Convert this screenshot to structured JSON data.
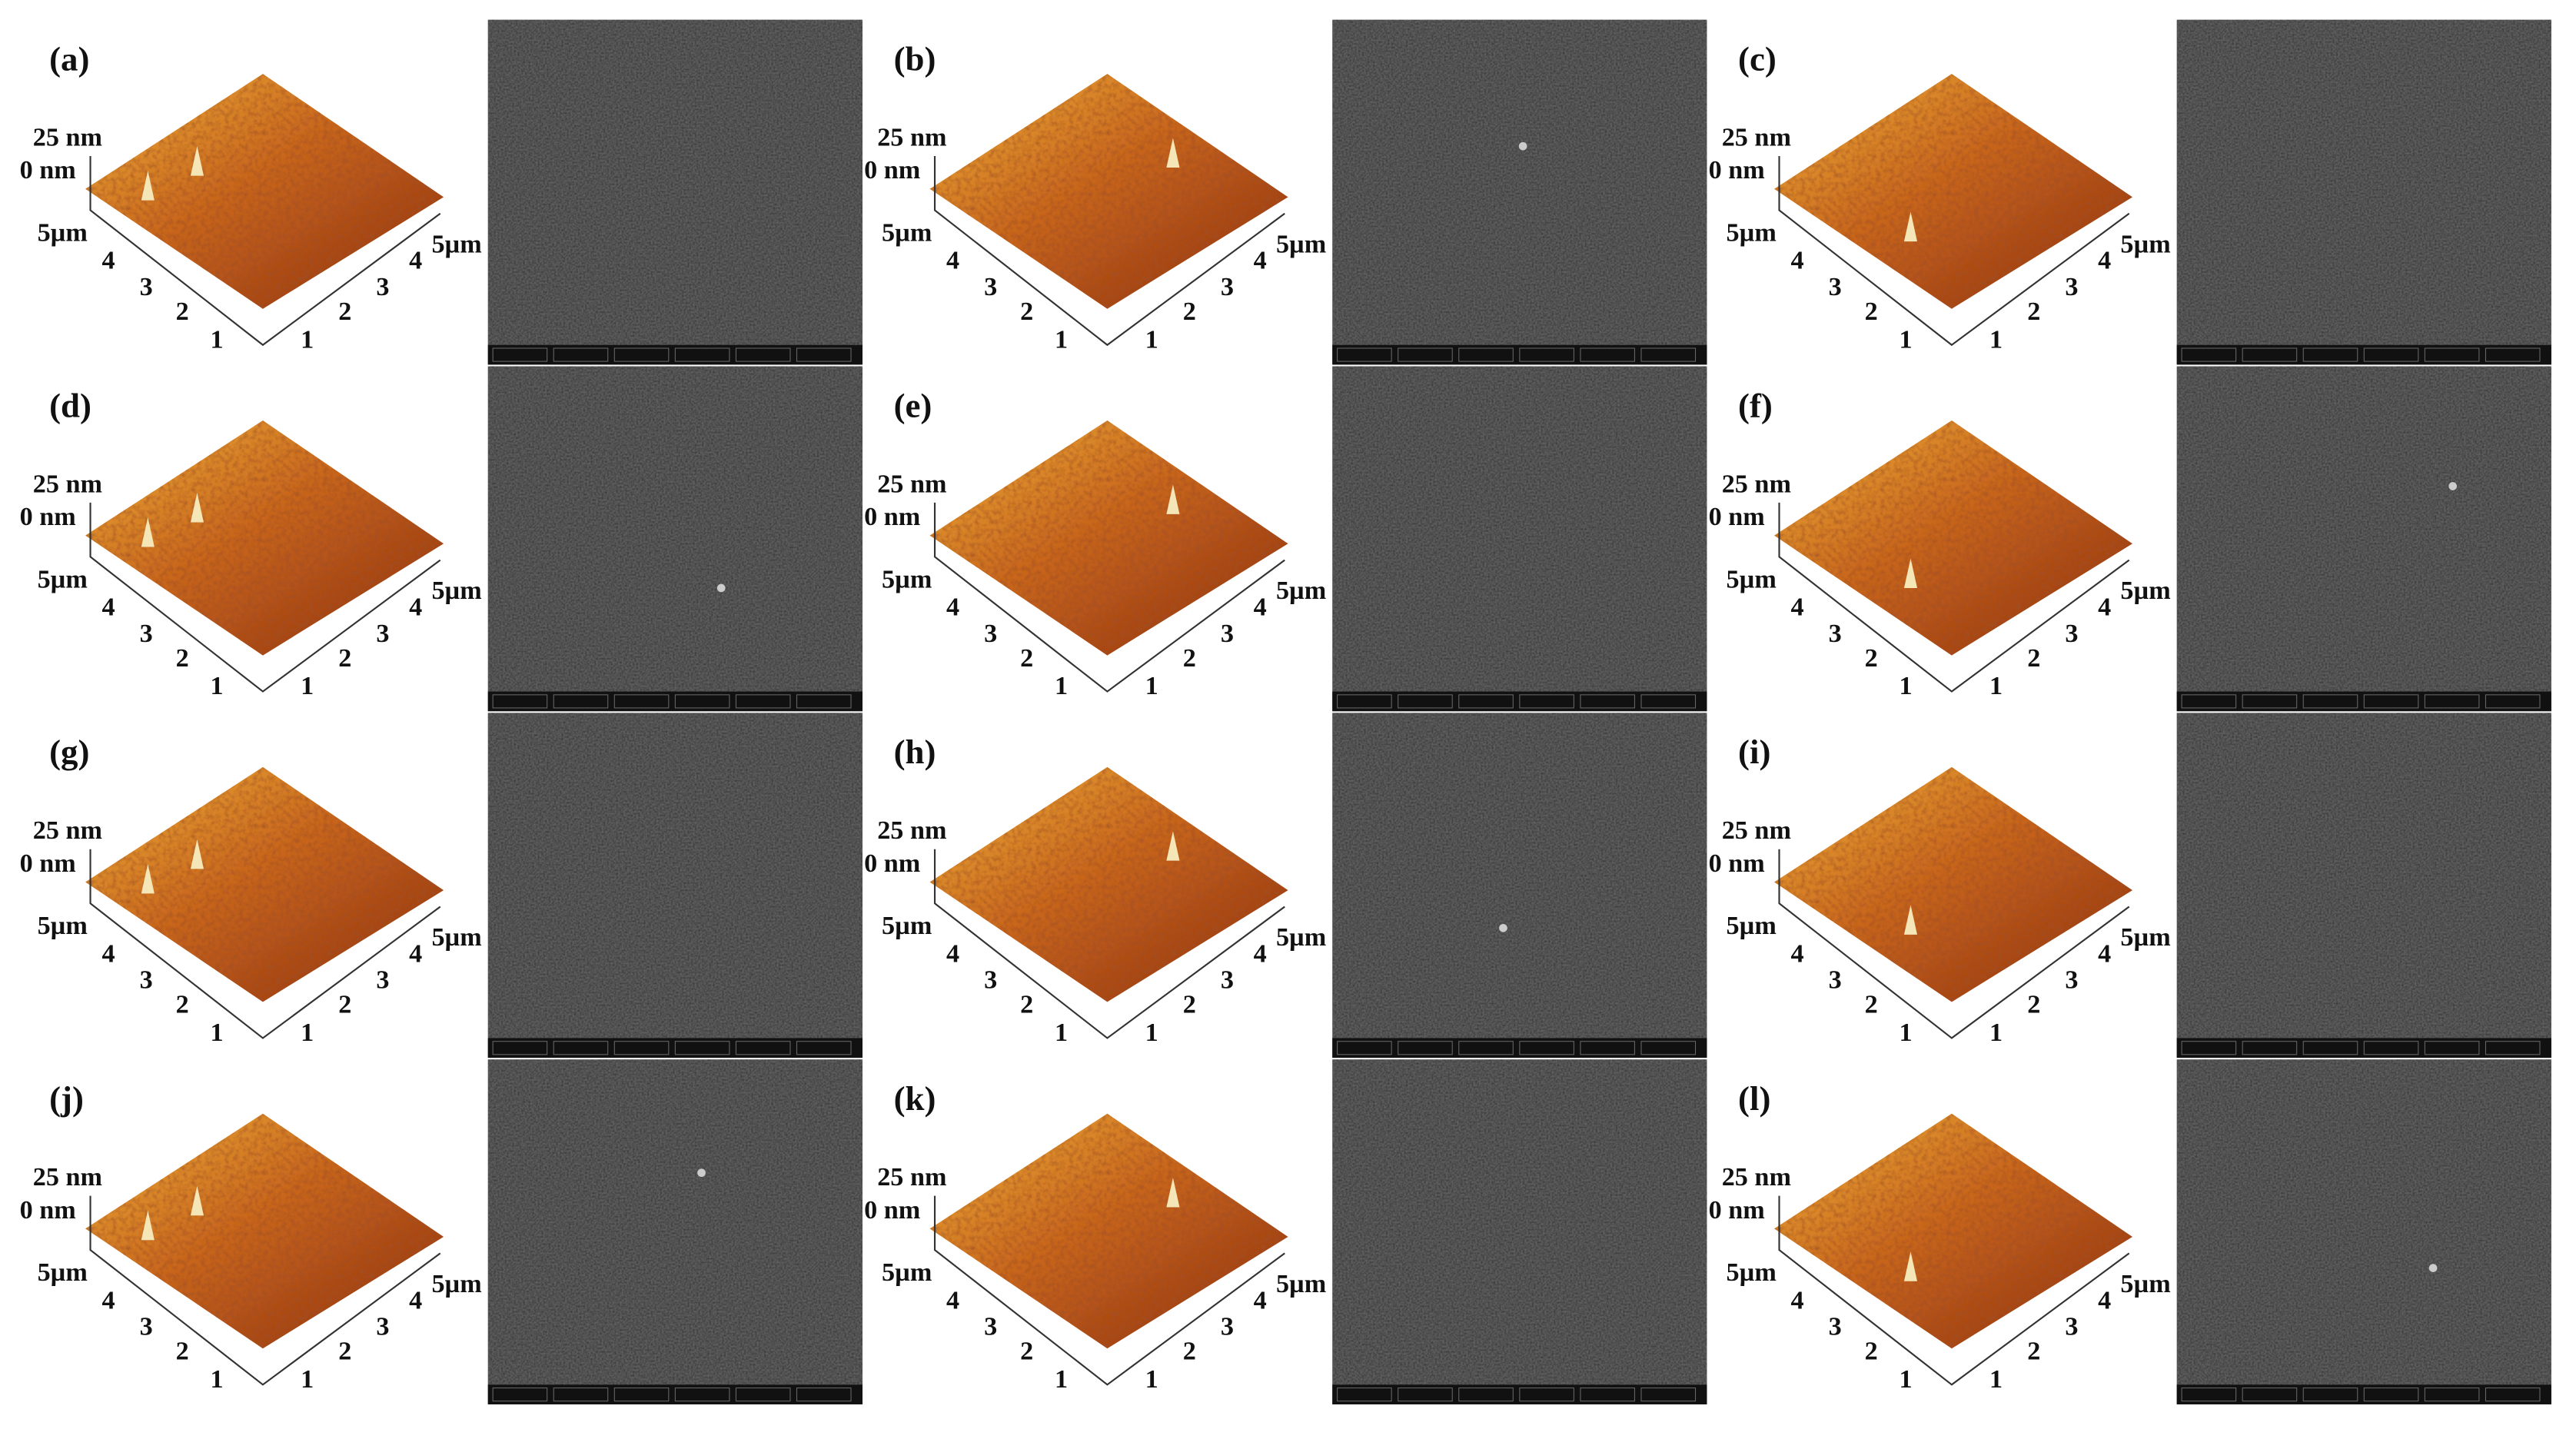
{
  "panels": [
    {
      "label": "(a)"
    },
    {
      "label": "(b)"
    },
    {
      "label": "(c)"
    },
    {
      "label": "(d)"
    },
    {
      "label": "(e)"
    },
    {
      "label": "(f)"
    },
    {
      "label": "(g)"
    },
    {
      "label": "(h)"
    },
    {
      "label": "(i)"
    },
    {
      "label": "(j)"
    },
    {
      "label": "(k)"
    },
    {
      "label": "(l)"
    }
  ],
  "afm_axes": {
    "z_max": "25 nm",
    "z_min": "0 nm",
    "left_ticks": [
      "5µm",
      "4",
      "3",
      "2",
      "1"
    ],
    "right_ticks": [
      "1",
      "2",
      "3",
      "4",
      "5µm"
    ]
  }
}
